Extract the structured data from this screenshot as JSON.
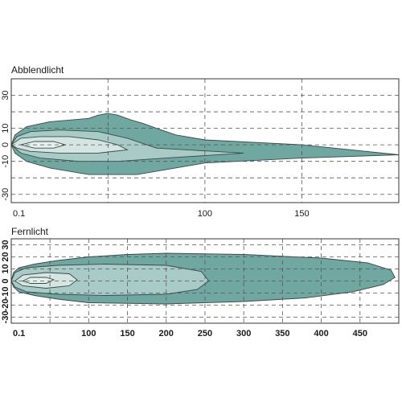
{
  "colors": {
    "outer_zone": "#70a7a1",
    "middle_zone": "#a9cbc7",
    "inner_zone": "#d4e5e2",
    "core_zone": "#e6f0ee",
    "contour_line": "#3a4a48",
    "grid_line": "#555555",
    "frame": "#333333"
  },
  "chart_data": [
    {
      "type": "area",
      "title": "Abblendlicht",
      "xlabel": "",
      "ylabel": "",
      "x_ticks": [
        "0.1",
        "100",
        "150"
      ],
      "x_tick_values": [
        0.1,
        100,
        150
      ],
      "x_grid_values": [
        0.1,
        50,
        100,
        150,
        200
      ],
      "y_ticks": [
        "30",
        "10",
        "0",
        "-10",
        "-30"
      ],
      "y_tick_values": [
        30,
        10,
        0,
        -10,
        -30
      ],
      "y_grid_values": [
        30,
        20,
        10,
        0,
        -10,
        -20,
        -30
      ],
      "xlim": [
        0.1,
        200
      ],
      "ylim": [
        -35,
        40
      ],
      "grid": true,
      "series": [
        {
          "points": [
            [
              0.1,
              0
            ],
            [
              2,
              6
            ],
            [
              8,
              11
            ],
            [
              20,
              14
            ],
            [
              40,
              16
            ],
            [
              45,
              18
            ],
            [
              50,
              19
            ],
            [
              55,
              18
            ],
            [
              62,
              15
            ],
            [
              68,
              13
            ],
            [
              75,
              10
            ],
            [
              85,
              6
            ],
            [
              100,
              3
            ],
            [
              150,
              0
            ],
            [
              200,
              -6
            ],
            [
              150,
              -8
            ],
            [
              100,
              -11
            ],
            [
              80,
              -15
            ],
            [
              65,
              -18
            ],
            [
              55,
              -18
            ],
            [
              40,
              -18
            ],
            [
              20,
              -14
            ],
            [
              8,
              -10
            ],
            [
              2,
              -5
            ],
            [
              0.1,
              0
            ]
          ]
        },
        {
          "points": [
            [
              0.1,
              0
            ],
            [
              3,
              5
            ],
            [
              10,
              8
            ],
            [
              25,
              9
            ],
            [
              45,
              8
            ],
            [
              60,
              4
            ],
            [
              75,
              -2
            ],
            [
              120,
              -5
            ],
            [
              80,
              -8
            ],
            [
              55,
              -10
            ],
            [
              35,
              -10
            ],
            [
              15,
              -8
            ],
            [
              5,
              -5
            ],
            [
              0.1,
              0
            ]
          ]
        },
        {
          "points": [
            [
              0.1,
              0
            ],
            [
              5,
              4
            ],
            [
              15,
              5
            ],
            [
              30,
              5
            ],
            [
              45,
              3
            ],
            [
              55,
              0
            ],
            [
              60,
              -3
            ],
            [
              45,
              -5
            ],
            [
              25,
              -5
            ],
            [
              10,
              -4
            ],
            [
              3,
              -2
            ],
            [
              0.1,
              0
            ]
          ]
        },
        {
          "points": [
            [
              5,
              0
            ],
            [
              12,
              2
            ],
            [
              22,
              2
            ],
            [
              28,
              0
            ],
            [
              22,
              -2
            ],
            [
              12,
              -2
            ],
            [
              5,
              0
            ]
          ]
        }
      ]
    },
    {
      "type": "area",
      "title": "Fernlicht",
      "xlabel": "",
      "ylabel": "",
      "x_ticks": [
        "0.1",
        "100",
        "150",
        "200",
        "250",
        "300",
        "350",
        "400",
        "450"
      ],
      "x_tick_values": [
        0.1,
        100,
        150,
        200,
        250,
        300,
        350,
        400,
        450
      ],
      "x_grid_values": [
        0.1,
        50,
        100,
        150,
        200,
        250,
        300,
        350,
        400,
        450
      ],
      "y_ticks": [
        "30",
        "20",
        "10",
        "0",
        "-10",
        "-20",
        "-30"
      ],
      "y_tick_values": [
        30,
        20,
        10,
        0,
        -10,
        -20,
        -30
      ],
      "y_grid_values": [
        30,
        20,
        10,
        0,
        -10,
        -20,
        -30
      ],
      "xlim": [
        0.1,
        500
      ],
      "ylim": [
        -35,
        35
      ],
      "grid": true,
      "series": [
        {
          "points": [
            [
              0.1,
              0
            ],
            [
              3,
              7
            ],
            [
              10,
              11
            ],
            [
              30,
              14
            ],
            [
              60,
              17
            ],
            [
              100,
              20
            ],
            [
              150,
              22
            ],
            [
              200,
              23
            ],
            [
              300,
              22
            ],
            [
              400,
              19
            ],
            [
              460,
              15
            ],
            [
              490,
              9
            ],
            [
              495,
              3
            ],
            [
              480,
              -3
            ],
            [
              440,
              -9
            ],
            [
              380,
              -14
            ],
            [
              300,
              -17
            ],
            [
              200,
              -19
            ],
            [
              100,
              -18
            ],
            [
              60,
              -15
            ],
            [
              30,
              -12
            ],
            [
              10,
              -9
            ],
            [
              3,
              -5
            ],
            [
              0.1,
              0
            ]
          ]
        },
        {
          "points": [
            [
              0.1,
              0
            ],
            [
              5,
              7
            ],
            [
              20,
              11
            ],
            [
              60,
              13
            ],
            [
              120,
              14
            ],
            [
              200,
              13
            ],
            [
              245,
              8
            ],
            [
              255,
              0
            ],
            [
              240,
              -7
            ],
            [
              200,
              -11
            ],
            [
              120,
              -12
            ],
            [
              60,
              -11
            ],
            [
              20,
              -9
            ],
            [
              5,
              -5
            ],
            [
              0.1,
              0
            ]
          ]
        },
        {
          "points": [
            [
              5,
              0
            ],
            [
              15,
              5
            ],
            [
              45,
              7
            ],
            [
              75,
              6
            ],
            [
              85,
              1
            ],
            [
              75,
              -4
            ],
            [
              45,
              -6
            ],
            [
              15,
              -4
            ],
            [
              5,
              0
            ]
          ]
        },
        {
          "points": [
            [
              15,
              0
            ],
            [
              25,
              3
            ],
            [
              45,
              3
            ],
            [
              55,
              1
            ],
            [
              45,
              -2
            ],
            [
              25,
              -2
            ],
            [
              15,
              0
            ]
          ]
        }
      ]
    }
  ]
}
